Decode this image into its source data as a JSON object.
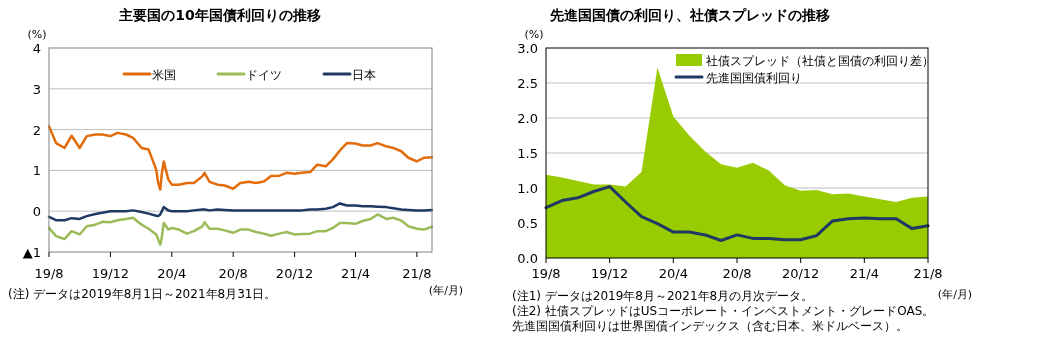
{
  "chart_data": [
    {
      "type": "line",
      "title": "主要国の10年国債利回りの推移",
      "ylabel": "(%)",
      "xlabel": "(年/月)",
      "grid": "y",
      "legend": "top",
      "x": [
        "2019-08-01",
        "2019-08-15",
        "2019-09-01",
        "2019-09-15",
        "2019-10-01",
        "2019-10-15",
        "2019-11-01",
        "2019-11-15",
        "2019-12-01",
        "2019-12-15",
        "2020-01-01",
        "2020-01-15",
        "2020-02-01",
        "2020-02-15",
        "2020-03-01",
        "2020-03-05",
        "2020-03-09",
        "2020-03-12",
        "2020-03-16",
        "2020-03-25",
        "2020-04-01",
        "2020-04-15",
        "2020-05-01",
        "2020-05-15",
        "2020-06-01",
        "2020-06-05",
        "2020-06-15",
        "2020-07-01",
        "2020-07-15",
        "2020-08-01",
        "2020-08-15",
        "2020-09-01",
        "2020-09-15",
        "2020-10-01",
        "2020-10-15",
        "2020-11-01",
        "2020-11-15",
        "2020-12-01",
        "2020-12-15",
        "2021-01-01",
        "2021-01-15",
        "2021-02-01",
        "2021-02-15",
        "2021-03-01",
        "2021-03-15",
        "2021-04-01",
        "2021-04-15",
        "2021-05-01",
        "2021-05-15",
        "2021-06-01",
        "2021-06-15",
        "2021-07-01",
        "2021-07-15",
        "2021-08-01",
        "2021-08-15",
        "2021-08-31"
      ],
      "series": [
        {
          "name": "米国",
          "color": "#e36c0a",
          "values": [
            2.08,
            1.67,
            1.55,
            1.85,
            1.55,
            1.84,
            1.88,
            1.88,
            1.84,
            1.92,
            1.88,
            1.8,
            1.55,
            1.51,
            1.02,
            0.69,
            0.53,
            0.9,
            1.22,
            0.78,
            0.65,
            0.65,
            0.69,
            0.69,
            0.86,
            0.94,
            0.72,
            0.65,
            0.63,
            0.55,
            0.69,
            0.72,
            0.69,
            0.73,
            0.86,
            0.87,
            0.94,
            0.92,
            0.94,
            0.96,
            1.14,
            1.1,
            1.27,
            1.49,
            1.67,
            1.66,
            1.61,
            1.61,
            1.67,
            1.59,
            1.55,
            1.47,
            1.31,
            1.22,
            1.31,
            1.32
          ]
        },
        {
          "name": "ドイツ",
          "color": "#9bbb59",
          "values": [
            -0.41,
            -0.61,
            -0.68,
            -0.49,
            -0.57,
            -0.37,
            -0.33,
            -0.26,
            -0.27,
            -0.22,
            -0.19,
            -0.16,
            -0.33,
            -0.43,
            -0.57,
            -0.69,
            -0.82,
            -0.65,
            -0.29,
            -0.45,
            -0.41,
            -0.45,
            -0.55,
            -0.49,
            -0.37,
            -0.27,
            -0.43,
            -0.43,
            -0.47,
            -0.53,
            -0.45,
            -0.45,
            -0.51,
            -0.55,
            -0.6,
            -0.55,
            -0.51,
            -0.57,
            -0.56,
            -0.55,
            -0.49,
            -0.49,
            -0.41,
            -0.29,
            -0.29,
            -0.31,
            -0.24,
            -0.19,
            -0.08,
            -0.19,
            -0.16,
            -0.23,
            -0.37,
            -0.43,
            -0.45,
            -0.38
          ]
        },
        {
          "name": "日本",
          "color": "#1f3864",
          "values": [
            -0.14,
            -0.22,
            -0.22,
            -0.17,
            -0.19,
            -0.12,
            -0.07,
            -0.04,
            0.0,
            0.0,
            0.0,
            0.02,
            -0.02,
            -0.06,
            -0.11,
            -0.12,
            -0.08,
            0.0,
            0.1,
            0.02,
            0.0,
            0.0,
            0.0,
            0.02,
            0.04,
            0.04,
            0.02,
            0.04,
            0.03,
            0.02,
            0.02,
            0.02,
            0.02,
            0.02,
            0.02,
            0.02,
            0.02,
            0.02,
            0.02,
            0.04,
            0.04,
            0.06,
            0.1,
            0.19,
            0.14,
            0.14,
            0.12,
            0.12,
            0.11,
            0.1,
            0.07,
            0.04,
            0.03,
            0.02,
            0.02,
            0.03
          ]
        }
      ],
      "xlim": [
        "2019-08-01",
        "2021-08-31"
      ],
      "xticks": [
        {
          "value": "2019-08-01",
          "label": "19/8"
        },
        {
          "value": "2019-12-01",
          "label": "19/12"
        },
        {
          "value": "2020-04-01",
          "label": "20/4"
        },
        {
          "value": "2020-08-01",
          "label": "20/8"
        },
        {
          "value": "2020-12-01",
          "label": "20/12"
        },
        {
          "value": "2021-04-01",
          "label": "21/4"
        },
        {
          "value": "2021-08-01",
          "label": "21/8"
        }
      ],
      "ylim": [
        -1,
        4
      ],
      "yticks": [
        {
          "value": -1,
          "label": "▲1"
        },
        0,
        1,
        2,
        3,
        4
      ],
      "annotations": [
        "(注) データは2019年8月1日～2021年8月31日。"
      ]
    },
    {
      "type": "line",
      "title": "先進国国債の利回り、社債スプレッドの推移",
      "ylabel": "(%)",
      "xlabel": "(年/月)",
      "grid": "y",
      "legend": "top right",
      "categories": [
        "19/8",
        null,
        null,
        null,
        "19/12",
        null,
        null,
        null,
        "20/4",
        null,
        null,
        null,
        "20/8",
        null,
        null,
        null,
        "20/12",
        null,
        null,
        null,
        "21/4",
        null,
        null,
        null,
        "21/8"
      ],
      "series": [
        {
          "name": "社債スプレッド（社債と国債の利回り差）",
          "type": "area",
          "color": "#99cc00",
          "values": [
            1.19,
            1.15,
            1.1,
            1.05,
            1.05,
            1.02,
            1.23,
            2.72,
            2.02,
            1.75,
            1.52,
            1.34,
            1.29,
            1.36,
            1.25,
            1.04,
            0.96,
            0.97,
            0.91,
            0.92,
            0.88,
            0.84,
            0.8,
            0.86,
            0.88
          ]
        },
        {
          "name": "先進国国債利回り",
          "color": "#1f3864",
          "values": [
            0.72,
            0.82,
            0.86,
            0.95,
            1.02,
            0.8,
            0.59,
            0.49,
            0.37,
            0.37,
            0.33,
            0.25,
            0.33,
            0.28,
            0.28,
            0.26,
            0.26,
            0.32,
            0.53,
            0.56,
            0.57,
            0.56,
            0.56,
            0.42,
            0.46
          ]
        }
      ],
      "ylim": [
        0,
        3
      ],
      "yticks": [
        {
          "value": 0,
          "label": "0.0"
        },
        {
          "value": 0.5,
          "label": "0.5"
        },
        {
          "value": 1,
          "label": "1.0"
        },
        {
          "value": 1.5,
          "label": "1.5"
        },
        {
          "value": 2,
          "label": "2.0"
        },
        {
          "value": 2.5,
          "label": "2.5"
        },
        {
          "value": 3,
          "label": "3.0"
        }
      ],
      "annotations": [
        "(注1) データは2019年8月～2021年8月の月次データ。",
        "(注2) 社債スプレッドはUSコーポレート・インベストメント・グレードOAS。",
        "先進国国債利回りは世界国債インデックス（含む日本、米ドルベース）。"
      ]
    }
  ]
}
